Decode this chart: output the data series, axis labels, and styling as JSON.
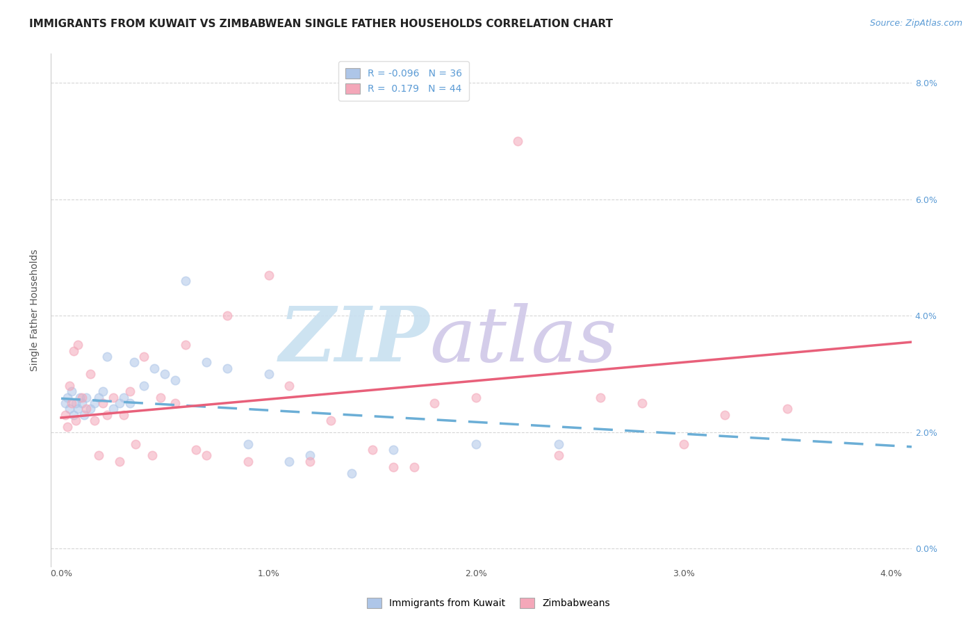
{
  "title": "IMMIGRANTS FROM KUWAIT VS ZIMBABWEAN SINGLE FATHER HOUSEHOLDS CORRELATION CHART",
  "source": "Source: ZipAtlas.com",
  "ylabel": "Single Father Households",
  "x_tick_labels": [
    "0.0%",
    "1.0%",
    "2.0%",
    "3.0%",
    "4.0%"
  ],
  "x_tick_positions": [
    0.0,
    1.0,
    2.0,
    3.0,
    4.0
  ],
  "y_tick_labels_right": [
    "0.0%",
    "2.0%",
    "4.0%",
    "6.0%",
    "8.0%"
  ],
  "y_tick_positions_right": [
    0.0,
    2.0,
    4.0,
    6.0,
    8.0
  ],
  "xlim": [
    -0.05,
    4.1
  ],
  "ylim": [
    -0.3,
    8.5
  ],
  "kuwait_scatter_x": [
    0.02,
    0.03,
    0.04,
    0.05,
    0.06,
    0.07,
    0.08,
    0.09,
    0.1,
    0.11,
    0.12,
    0.14,
    0.16,
    0.18,
    0.2,
    0.22,
    0.25,
    0.28,
    0.3,
    0.33,
    0.35,
    0.4,
    0.45,
    0.5,
    0.55,
    0.6,
    0.7,
    0.8,
    0.9,
    1.0,
    1.1,
    1.2,
    1.4,
    1.6,
    2.0,
    2.4
  ],
  "kuwait_scatter_y": [
    2.5,
    2.6,
    2.4,
    2.7,
    2.3,
    2.5,
    2.4,
    2.6,
    2.5,
    2.3,
    2.6,
    2.4,
    2.5,
    2.6,
    2.7,
    3.3,
    2.4,
    2.5,
    2.6,
    2.5,
    3.2,
    2.8,
    3.1,
    3.0,
    2.9,
    4.6,
    3.2,
    3.1,
    1.8,
    3.0,
    1.5,
    1.6,
    1.3,
    1.7,
    1.8,
    1.8
  ],
  "zimbabwe_scatter_x": [
    0.02,
    0.03,
    0.04,
    0.05,
    0.06,
    0.07,
    0.08,
    0.1,
    0.12,
    0.14,
    0.16,
    0.18,
    0.2,
    0.22,
    0.25,
    0.28,
    0.3,
    0.33,
    0.36,
    0.4,
    0.44,
    0.48,
    0.55,
    0.6,
    0.65,
    0.7,
    0.8,
    0.9,
    1.0,
    1.1,
    1.2,
    1.3,
    1.5,
    1.6,
    1.7,
    1.8,
    2.0,
    2.2,
    2.4,
    2.6,
    2.8,
    3.0,
    3.2,
    3.5
  ],
  "zimbabwe_scatter_y": [
    2.3,
    2.1,
    2.8,
    2.5,
    3.4,
    2.2,
    3.5,
    2.6,
    2.4,
    3.0,
    2.2,
    1.6,
    2.5,
    2.3,
    2.6,
    1.5,
    2.3,
    2.7,
    1.8,
    3.3,
    1.6,
    2.6,
    2.5,
    3.5,
    1.7,
    1.6,
    4.0,
    1.5,
    4.7,
    2.8,
    1.5,
    2.2,
    1.7,
    1.4,
    1.4,
    2.5,
    2.6,
    7.0,
    1.6,
    2.6,
    2.5,
    1.8,
    2.3,
    2.4
  ],
  "kuwait_color": "#aec6e8",
  "zimbabwe_color": "#f4a7b9",
  "kuwait_line_color": "#6baed6",
  "zimbabwe_line_color": "#e8607a",
  "kuwait_trend_x": [
    0.0,
    4.1
  ],
  "kuwait_trend_y_start": 2.58,
  "kuwait_trend_y_end": 1.75,
  "zimbabwe_trend_x": [
    0.0,
    4.1
  ],
  "zimbabwe_trend_y_start": 2.25,
  "zimbabwe_trend_y_end": 3.55,
  "watermark_zip": "ZIP",
  "watermark_atlas": "atlas",
  "watermark_color_zip": "#c8e0f0",
  "watermark_color_atlas": "#d0c8e8",
  "watermark_fontsize": 80,
  "background_color": "#ffffff",
  "grid_color": "#cccccc",
  "title_fontsize": 11,
  "axis_label_fontsize": 10,
  "tick_fontsize": 9,
  "legend_fontsize": 10,
  "source_fontsize": 9,
  "scatter_size": 80,
  "scatter_alpha": 0.55,
  "bottom_labels": [
    "Immigrants from Kuwait",
    "Zimbabweans"
  ]
}
